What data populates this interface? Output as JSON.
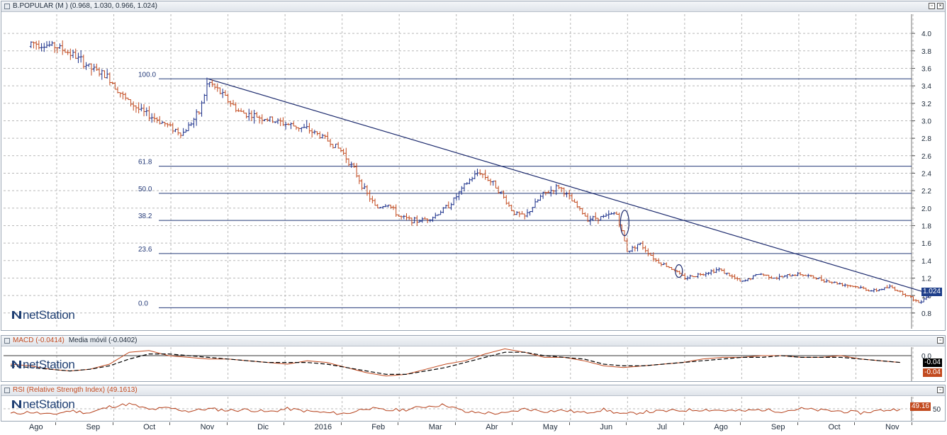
{
  "colors": {
    "up": "#1a2f8a",
    "down": "#c24a1f",
    "grid": "#b8b8b8",
    "trend": "#1d2b6e",
    "fib": "#243a78",
    "macd": "#c24a1f",
    "signal": "#000000",
    "rsi": "#b5401a",
    "last_value_bg": "#1f3f8a",
    "macd_box_bg": "#000000",
    "macd_box2_bg": "#c24a1f",
    "rsi_box_bg": "#c24a1f"
  },
  "price_panel": {
    "title": "B.POPULAR (M ) (0.968, 1.030, 0.966, 1.024)",
    "logo": "netStation",
    "last_value": "1.024",
    "ctrl_min": "▫",
    "ctrl_close": "×"
  },
  "macd_panel": {
    "title": "MACD (-0.0414)",
    "subtitle": "Media móvil (-0.0402)",
    "logo": "netStation",
    "box1": "-0.04",
    "box2": "-0.04"
  },
  "rsi_panel": {
    "title": "RSI (Relative Strength Index) (49.1613)",
    "logo": "netStation",
    "box": "49.16"
  },
  "chart_data": [
    {
      "type": "line",
      "chart": "price",
      "ylim": [
        0.62,
        4.22
      ],
      "yticks": [
        0.8,
        1.0,
        1.2,
        1.4,
        1.6,
        1.8,
        2.0,
        2.2,
        2.4,
        2.6,
        2.8,
        3.0,
        3.2,
        3.4,
        3.6,
        3.8,
        4.0
      ],
      "ytick_labels": [
        "0.8",
        "1.0",
        "1.2",
        "1.4",
        "1.6",
        "1.8",
        "2.0",
        "2.2",
        "2.4",
        "2.6",
        "2.8",
        "3.0",
        "3.2",
        "3.4",
        "3.6",
        "3.8",
        "4.0"
      ],
      "x_months": [
        "Ago",
        "Sep",
        "Oct",
        "Nov",
        "Dic",
        "2016",
        "Feb",
        "Mar",
        "Abr",
        "May",
        "Jun",
        "Jul",
        "Ago",
        "Sep",
        "Oct",
        "Nov"
      ],
      "fib_levels": [
        {
          "label": "100.0",
          "value": 3.48
        },
        {
          "label": "61.8",
          "value": 2.48
        },
        {
          "label": "50.0",
          "value": 2.17
        },
        {
          "label": "38.2",
          "value": 1.86
        },
        {
          "label": "23.6",
          "value": 1.48
        },
        {
          "label": "0.0",
          "value": 0.86
        }
      ],
      "trend_line": {
        "from": {
          "x": 2.65,
          "y": 3.48
        },
        "to": {
          "x": 15.3,
          "y": 1.02
        }
      },
      "series": [
        {
          "values_by_month": [
            {
              "x": 0.0,
              "y": 3.85
            },
            {
              "x": 0.3,
              "y": 3.75
            },
            {
              "x": 0.6,
              "y": 3.6
            },
            {
              "x": 0.9,
              "y": 3.5
            },
            {
              "x": 1.2,
              "y": 3.25
            },
            {
              "x": 1.5,
              "y": 3.1
            },
            {
              "x": 1.8,
              "y": 3.0
            },
            {
              "x": 2.2,
              "y": 2.85
            },
            {
              "x": 2.5,
              "y": 3.1
            },
            {
              "x": 2.65,
              "y": 3.45
            },
            {
              "x": 2.9,
              "y": 3.3
            },
            {
              "x": 3.2,
              "y": 3.1
            },
            {
              "x": 3.5,
              "y": 3.05
            },
            {
              "x": 3.8,
              "y": 3.0
            },
            {
              "x": 4.1,
              "y": 2.95
            },
            {
              "x": 4.4,
              "y": 2.9
            },
            {
              "x": 4.7,
              "y": 2.8
            },
            {
              "x": 5.0,
              "y": 2.65
            },
            {
              "x": 5.2,
              "y": 2.45
            },
            {
              "x": 5.4,
              "y": 2.2
            },
            {
              "x": 5.6,
              "y": 2.0
            },
            {
              "x": 5.8,
              "y": 2.05
            },
            {
              "x": 6.0,
              "y": 1.9
            },
            {
              "x": 6.3,
              "y": 1.85
            },
            {
              "x": 6.6,
              "y": 1.9
            },
            {
              "x": 6.9,
              "y": 2.05
            },
            {
              "x": 7.2,
              "y": 2.3
            },
            {
              "x": 7.4,
              "y": 2.42
            },
            {
              "x": 7.7,
              "y": 2.25
            },
            {
              "x": 8.0,
              "y": 1.95
            },
            {
              "x": 8.2,
              "y": 1.9
            },
            {
              "x": 8.5,
              "y": 2.15
            },
            {
              "x": 8.8,
              "y": 2.25
            },
            {
              "x": 9.0,
              "y": 2.1
            },
            {
              "x": 9.3,
              "y": 1.88
            },
            {
              "x": 9.6,
              "y": 1.9
            },
            {
              "x": 9.8,
              "y": 1.95
            },
            {
              "x": 10.0,
              "y": 1.5
            },
            {
              "x": 10.2,
              "y": 1.6
            },
            {
              "x": 10.5,
              "y": 1.4
            },
            {
              "x": 10.8,
              "y": 1.3
            },
            {
              "x": 11.0,
              "y": 1.2
            },
            {
              "x": 11.3,
              "y": 1.25
            },
            {
              "x": 11.6,
              "y": 1.3
            },
            {
              "x": 12.0,
              "y": 1.15
            },
            {
              "x": 12.3,
              "y": 1.25
            },
            {
              "x": 12.6,
              "y": 1.2
            },
            {
              "x": 13.0,
              "y": 1.25
            },
            {
              "x": 13.3,
              "y": 1.2
            },
            {
              "x": 13.6,
              "y": 1.15
            },
            {
              "x": 14.0,
              "y": 1.1
            },
            {
              "x": 14.3,
              "y": 1.05
            },
            {
              "x": 14.6,
              "y": 1.1
            },
            {
              "x": 14.9,
              "y": 1.0
            },
            {
              "x": 15.1,
              "y": 0.92
            },
            {
              "x": 15.3,
              "y": 1.02
            }
          ]
        }
      ]
    },
    {
      "type": "line",
      "chart": "macd",
      "ylim": [
        -0.15,
        0.05
      ],
      "yticks": [
        0.0
      ],
      "ytick_labels": [
        "0.0"
      ],
      "series": [
        {
          "values": [
            -0.05,
            -0.06,
            -0.08,
            -0.09,
            -0.08,
            -0.05,
            0.02,
            0.03,
            0.0,
            -0.01,
            -0.02,
            -0.02,
            -0.03,
            -0.04,
            -0.05,
            -0.03,
            -0.04,
            -0.07,
            -0.1,
            -0.12,
            -0.11,
            -0.08,
            -0.05,
            -0.03,
            0.01,
            0.04,
            0.02,
            -0.01,
            -0.01,
            -0.03,
            -0.06,
            -0.07,
            -0.06,
            -0.05,
            -0.04,
            -0.02,
            -0.01,
            -0.01,
            0.0,
            0.0,
            -0.01,
            -0.01,
            0.0,
            -0.02,
            -0.03,
            -0.04
          ]
        },
        {
          "values": [
            -0.06,
            -0.07,
            -0.08,
            -0.09,
            -0.08,
            -0.06,
            -0.02,
            0.01,
            0.01,
            0.0,
            -0.01,
            -0.02,
            -0.03,
            -0.04,
            -0.04,
            -0.04,
            -0.05,
            -0.07,
            -0.09,
            -0.11,
            -0.11,
            -0.09,
            -0.07,
            -0.04,
            -0.01,
            0.02,
            0.02,
            0.0,
            -0.01,
            -0.02,
            -0.05,
            -0.06,
            -0.06,
            -0.05,
            -0.04,
            -0.03,
            -0.02,
            -0.01,
            -0.01,
            0.0,
            -0.01,
            -0.01,
            -0.01,
            -0.02,
            -0.03,
            -0.04
          ]
        }
      ]
    },
    {
      "type": "line",
      "chart": "rsi",
      "ylim": [
        20,
        80
      ],
      "yticks": [
        50
      ],
      "ytick_labels": [
        "50"
      ],
      "series": [
        {
          "values": [
            38,
            42,
            35,
            45,
            40,
            55,
            62,
            48,
            52,
            44,
            50,
            46,
            48,
            42,
            50,
            44,
            40,
            38,
            52,
            46,
            48,
            56,
            60,
            42,
            40,
            38,
            50,
            44,
            46,
            40,
            48,
            36,
            42,
            44,
            46,
            48,
            46,
            44,
            48,
            44,
            50,
            46,
            44,
            40,
            46,
            49
          ]
        }
      ]
    }
  ]
}
